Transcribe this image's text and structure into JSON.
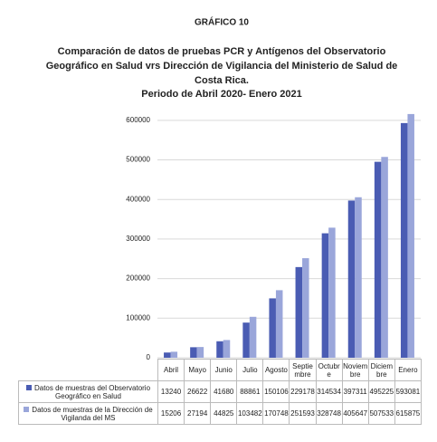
{
  "chart_data": {
    "type": "bar",
    "super_title": "GRÁFICO 10",
    "title": [
      "Comparación de datos de pruebas PCR y Antígenos del Observatorio",
      "Geográfico en Salud vrs Dirección de Vigilancia del Ministerio de Salud de",
      "Costa Rica.",
      "Periodo de Abril 2020- Enero 2021"
    ],
    "categories": [
      "Abril",
      "Mayo",
      "Junio",
      "Julio",
      "Agosto",
      "Septiembre",
      "Octubre",
      "Noviembre",
      "Diciembre",
      "Enero"
    ],
    "series": [
      {
        "name": "Datos de muestras del Observatorio Geográfico en Salud",
        "color": "#4a5cb3",
        "values": [
          13240,
          26622,
          41680,
          88861,
          150106,
          229178,
          314534,
          397311,
          495225,
          593081
        ]
      },
      {
        "name": "Datos de muestras de la Dirección de Vigilanda del MS",
        "color": "#9aa6da",
        "values": [
          15206,
          27194,
          44825,
          103482,
          170748,
          251593,
          328748,
          405647,
          507533,
          615875
        ]
      }
    ],
    "ylim": [
      0,
      650000
    ],
    "yticks": [
      0,
      100000,
      200000,
      300000,
      400000,
      500000,
      600000
    ],
    "grid": true
  }
}
